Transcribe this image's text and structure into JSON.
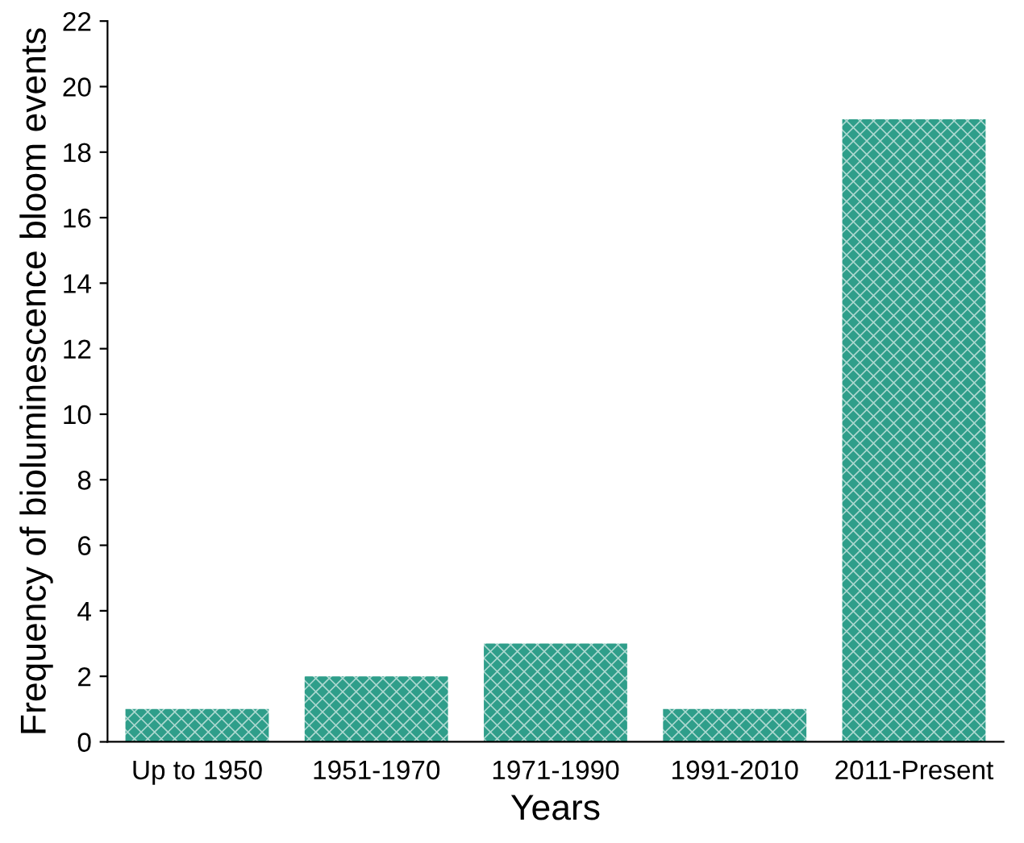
{
  "chart_data": {
    "type": "bar",
    "xlabel": "Years",
    "ylabel": "Frequency of bioluminescence bloom events",
    "categories": [
      "Up to 1950",
      "1951-1970",
      "1971-1990",
      "1991-2010",
      "2011-Present"
    ],
    "values": [
      1,
      2,
      3,
      1,
      19
    ],
    "color": "#2f9e8a",
    "ylim": [
      0,
      22
    ],
    "yticks": [
      0,
      2,
      4,
      6,
      8,
      10,
      12,
      14,
      16,
      18,
      20,
      22
    ],
    "grid": false,
    "legend": false
  }
}
